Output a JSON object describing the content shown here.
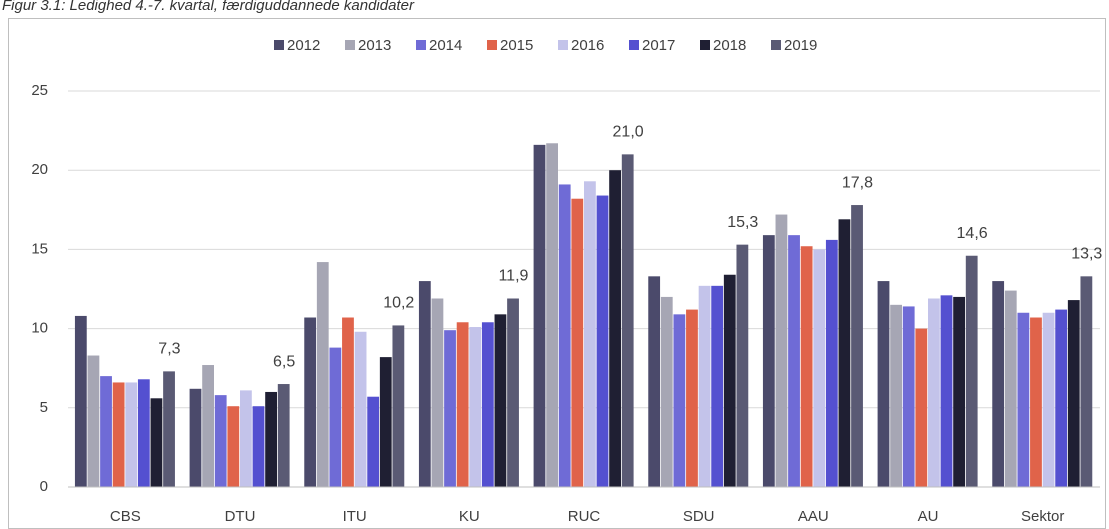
{
  "chart_data": {
    "type": "bar",
    "title": "Figur 3.1: Ledighed 4.-7. kvartal, færdiguddannede kandidater",
    "categories": [
      "CBS",
      "DTU",
      "ITU",
      "KU",
      "RUC",
      "SDU",
      "AAU",
      "AU",
      "Sektor"
    ],
    "series": [
      {
        "name": "2012",
        "color": "#4b4a6b",
        "values": [
          10.8,
          6.2,
          10.7,
          13.0,
          21.6,
          13.3,
          15.9,
          13.0,
          13.0
        ]
      },
      {
        "name": "2013",
        "color": "#a6a6b4",
        "values": [
          8.3,
          7.7,
          14.2,
          11.9,
          21.7,
          12.0,
          17.2,
          11.5,
          12.4
        ]
      },
      {
        "name": "2014",
        "color": "#6f6bd6",
        "values": [
          7.0,
          5.8,
          8.8,
          9.9,
          19.1,
          10.9,
          15.9,
          11.4,
          11.0
        ]
      },
      {
        "name": "2015",
        "color": "#e0634a",
        "values": [
          6.6,
          5.1,
          10.7,
          10.4,
          18.2,
          11.2,
          15.2,
          10.0,
          10.7
        ]
      },
      {
        "name": "2016",
        "color": "#c3c3ea",
        "values": [
          6.6,
          6.1,
          9.8,
          10.1,
          19.3,
          12.7,
          15.0,
          11.9,
          11.0
        ]
      },
      {
        "name": "2017",
        "color": "#5450d0",
        "values": [
          6.8,
          5.1,
          5.7,
          10.4,
          18.4,
          12.7,
          15.6,
          12.1,
          11.2
        ]
      },
      {
        "name": "2018",
        "color": "#1f1f33",
        "values": [
          5.6,
          6.0,
          8.2,
          10.9,
          20.0,
          13.4,
          16.9,
          12.0,
          11.8
        ]
      },
      {
        "name": "2019",
        "color": "#5a5a74",
        "values": [
          7.3,
          6.5,
          10.2,
          11.9,
          21.0,
          15.3,
          17.8,
          14.6,
          13.3
        ],
        "value_labels": [
          "7,3",
          "6,5",
          "10,2",
          "11,9",
          "21,0",
          "15,3",
          "17,8",
          "14,6",
          "13,3"
        ]
      }
    ],
    "ylim": [
      0,
      25
    ],
    "yticks": [
      0,
      5,
      10,
      15,
      20,
      25
    ],
    "grid": true,
    "legend": "top"
  }
}
